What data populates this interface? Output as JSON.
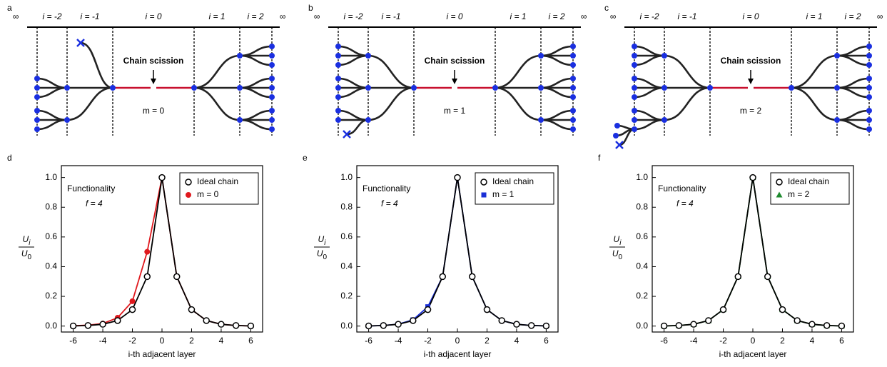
{
  "diagrams": [
    {
      "panel": "a",
      "labels": [
        "∞",
        "i = -2",
        "i = -1",
        "i = 0",
        "i = 1",
        "i = 2",
        "∞"
      ],
      "annotation": "Chain scission",
      "state": "m = 0"
    },
    {
      "panel": "b",
      "labels": [
        "∞",
        "i = -2",
        "i = -1",
        "i = 0",
        "i = 1",
        "i = 2",
        "∞"
      ],
      "annotation": "Chain scission",
      "state": "m = 1"
    },
    {
      "panel": "c",
      "labels": [
        "∞",
        "i = -2",
        "i = -1",
        "i = 0",
        "i = 1",
        "i = 2",
        "∞"
      ],
      "annotation": "Chain scission",
      "state": "m = 2"
    }
  ],
  "chart_data": [
    {
      "type": "line",
      "panel": "d",
      "annotation": [
        "Functionality",
        "f = 4"
      ],
      "xlabel": "i-th adjacent layer",
      "ylabel": {
        "numerator": [
          "U",
          "i"
        ],
        "denominator": [
          "U",
          "0"
        ]
      },
      "x": [
        -6,
        -5,
        -4,
        -3,
        -2,
        -1,
        0,
        1,
        2,
        3,
        4,
        5,
        6
      ],
      "series": [
        {
          "name": "Ideal chain",
          "color": "#000000",
          "marker": "open-circle",
          "values": [
            0.001,
            0.004,
            0.012,
            0.037,
            0.111,
            0.333,
            1,
            0.333,
            0.111,
            0.037,
            0.012,
            0.004,
            0.001
          ]
        },
        {
          "name": "m = 0",
          "color": "#e0191e",
          "marker": "circle",
          "values": [
            0.002,
            0.006,
            0.017,
            0.056,
            0.167,
            0.5,
            1,
            0.333,
            0.111,
            0.037,
            0.012,
            0.004,
            0.001
          ]
        }
      ],
      "xlim": [
        -6.8,
        6.8
      ],
      "ylim": [
        -0.04,
        1.08
      ],
      "xticks": [
        -6,
        -4,
        -2,
        0,
        2,
        4,
        6
      ],
      "yticks": [
        {
          "value": 0,
          "label": "0.0"
        },
        {
          "value": 0.2,
          "label": "0.2"
        },
        {
          "value": 0.4,
          "label": "0.4"
        },
        {
          "value": 0.6,
          "label": "0.6"
        },
        {
          "value": 0.8,
          "label": "0.8"
        },
        {
          "value": 1,
          "label": "1.0"
        }
      ],
      "grid": false,
      "legend": "upper right"
    },
    {
      "type": "line",
      "panel": "e",
      "annotation": [
        "Functionality",
        "f = 4"
      ],
      "xlabel": "i-th adjacent layer",
      "ylabel": {
        "numerator": [
          "U",
          "i"
        ],
        "denominator": [
          "U",
          "0"
        ]
      },
      "x": [
        -6,
        -5,
        -4,
        -3,
        -2,
        -1,
        0,
        1,
        2,
        3,
        4,
        5,
        6
      ],
      "series": [
        {
          "name": "Ideal chain",
          "color": "#000000",
          "marker": "open-circle",
          "values": [
            0.001,
            0.004,
            0.012,
            0.037,
            0.111,
            0.333,
            1,
            0.333,
            0.111,
            0.037,
            0.012,
            0.004,
            0.001
          ]
        },
        {
          "name": "m = 1",
          "color": "#1a2fd6",
          "marker": "square",
          "values": [
            0.001,
            0.004,
            0.013,
            0.042,
            0.13,
            0.333,
            1,
            0.333,
            0.111,
            0.037,
            0.012,
            0.004,
            0.001
          ]
        }
      ],
      "xlim": [
        -6.8,
        6.8
      ],
      "ylim": [
        -0.04,
        1.08
      ],
      "xticks": [
        -6,
        -4,
        -2,
        0,
        2,
        4,
        6
      ],
      "yticks": [
        {
          "value": 0,
          "label": "0.0"
        },
        {
          "value": 0.2,
          "label": "0.2"
        },
        {
          "value": 0.4,
          "label": "0.4"
        },
        {
          "value": 0.6,
          "label": "0.6"
        },
        {
          "value": 0.8,
          "label": "0.8"
        },
        {
          "value": 1,
          "label": "1.0"
        }
      ],
      "grid": false,
      "legend": "upper right"
    },
    {
      "type": "line",
      "panel": "f",
      "annotation": [
        "Functionality",
        "f = 4"
      ],
      "xlabel": "i-th adjacent layer",
      "ylabel": {
        "numerator": [
          "U",
          "i"
        ],
        "denominator": [
          "U",
          "0"
        ]
      },
      "x": [
        -6,
        -5,
        -4,
        -3,
        -2,
        -1,
        0,
        1,
        2,
        3,
        4,
        5,
        6
      ],
      "series": [
        {
          "name": "Ideal chain",
          "color": "#000000",
          "marker": "open-circle",
          "values": [
            0.001,
            0.004,
            0.012,
            0.037,
            0.111,
            0.333,
            1,
            0.333,
            0.111,
            0.037,
            0.012,
            0.004,
            0.001
          ]
        },
        {
          "name": "m = 2",
          "color": "#1e8a2e",
          "marker": "triangle",
          "values": [
            0.001,
            0.004,
            0.012,
            0.037,
            0.111,
            0.333,
            1,
            0.333,
            0.111,
            0.037,
            0.012,
            0.004,
            0.001
          ]
        }
      ],
      "xlim": [
        -6.8,
        6.8
      ],
      "ylim": [
        -0.04,
        1.08
      ],
      "xticks": [
        -6,
        -4,
        -2,
        0,
        2,
        4,
        6
      ],
      "yticks": [
        {
          "value": 0,
          "label": "0.0"
        },
        {
          "value": 0.2,
          "label": "0.2"
        },
        {
          "value": 0.4,
          "label": "0.4"
        },
        {
          "value": 0.6,
          "label": "0.6"
        },
        {
          "value": 0.8,
          "label": "0.8"
        },
        {
          "value": 1,
          "label": "1.0"
        }
      ],
      "grid": false,
      "legend": "upper right"
    }
  ]
}
